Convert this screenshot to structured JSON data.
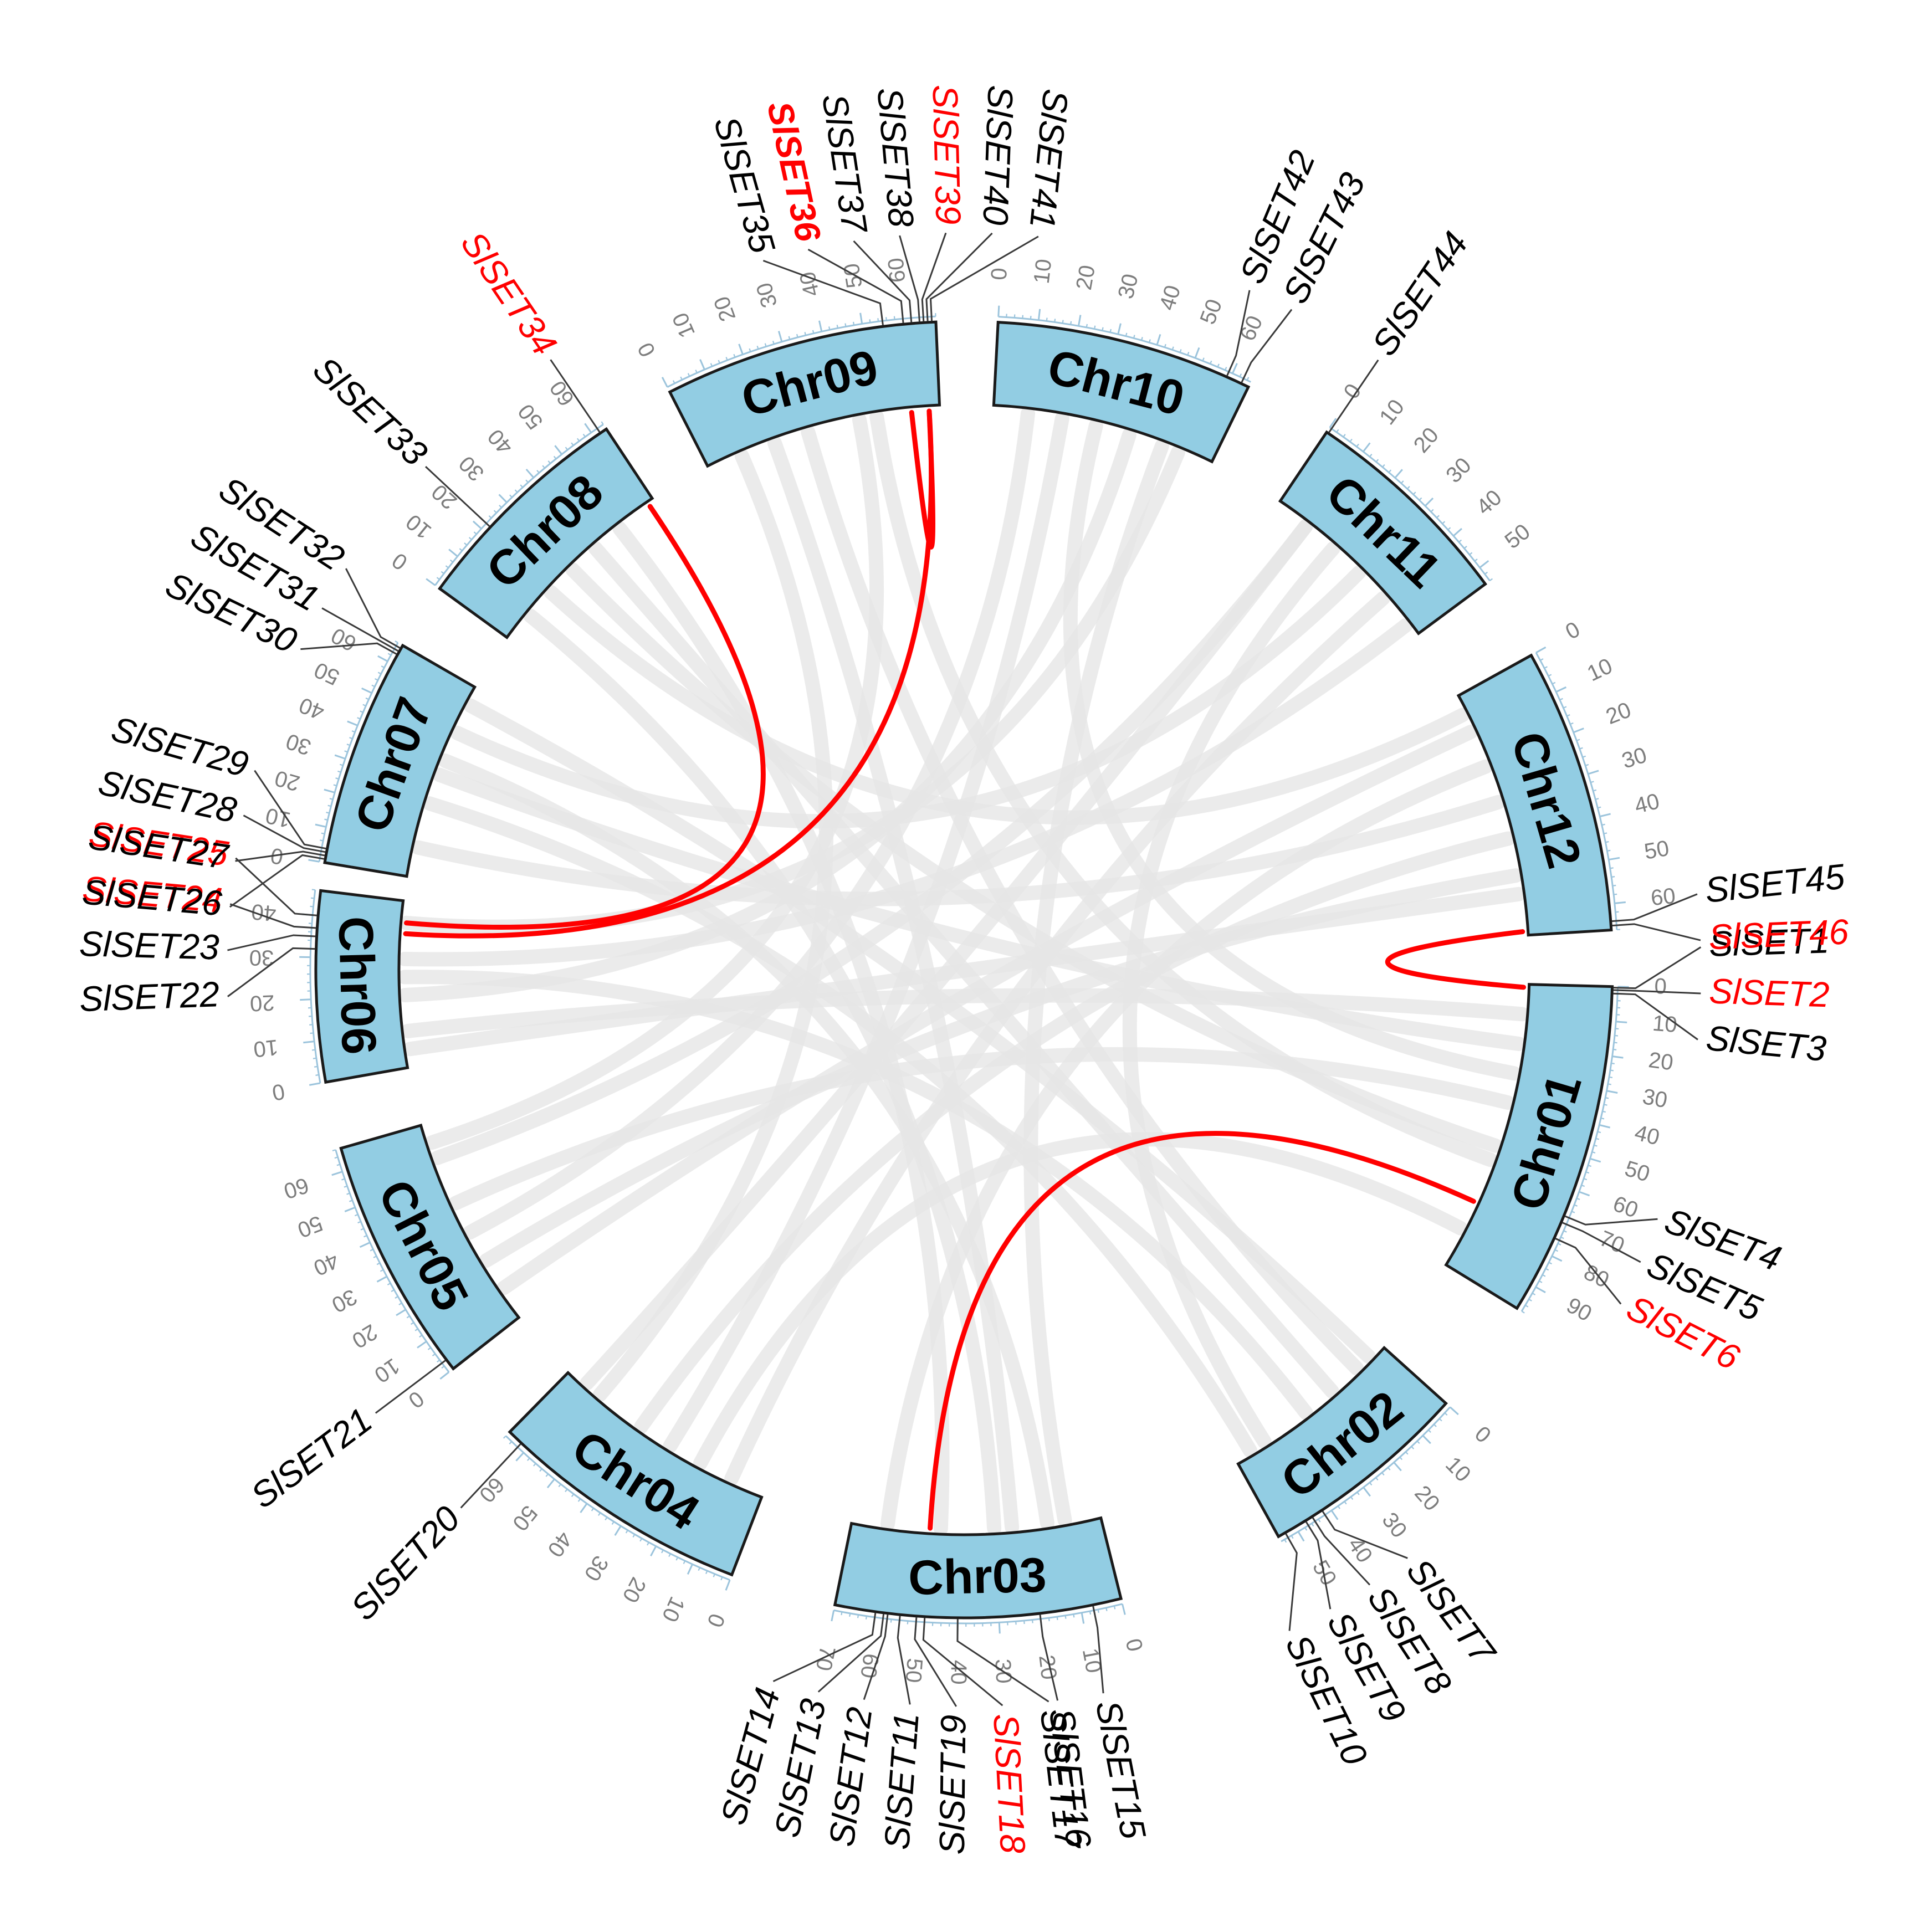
{
  "figure": {
    "type": "circos",
    "description_units": "Mb",
    "colors": {
      "chromosome_fill": "#92cde3",
      "tick": "#9cc4dc",
      "tick_label": "#7d7d7d",
      "background_link": "#e6e6e6",
      "highlight_link": "#ff0000",
      "gene_label_default": "#000000",
      "gene_label_highlight": "#ff0000"
    }
  },
  "chromosomes": [
    {
      "name": "Chr01",
      "length": 98,
      "tick_step": 10
    },
    {
      "name": "Chr02",
      "length": 55,
      "tick_step": 10
    },
    {
      "name": "Chr03",
      "length": 70,
      "tick_step": 10
    },
    {
      "name": "Chr04",
      "length": 66,
      "tick_step": 10
    },
    {
      "name": "Chr05",
      "length": 66,
      "tick_step": 10
    },
    {
      "name": "Chr06",
      "length": 46,
      "tick_step": 10
    },
    {
      "name": "Chr07",
      "length": 66,
      "tick_step": 10
    },
    {
      "name": "Chr08",
      "length": 64,
      "tick_step": 10
    },
    {
      "name": "Chr09",
      "length": 68,
      "tick_step": 10
    },
    {
      "name": "Chr10",
      "length": 65,
      "tick_step": 10
    },
    {
      "name": "Chr11",
      "length": 54,
      "tick_step": 10
    },
    {
      "name": "Chr12",
      "length": 66,
      "tick_step": 10
    }
  ],
  "genes": [
    {
      "label": "SlSET1",
      "chr": "Chr01",
      "pos": 0.3,
      "highlight": false,
      "bold": false
    },
    {
      "label": "SlSET2",
      "chr": "Chr01",
      "pos": 1.0,
      "highlight": true,
      "bold": false
    },
    {
      "label": "SlSET3",
      "chr": "Chr01",
      "pos": 2.0,
      "highlight": false,
      "bold": false
    },
    {
      "label": "SlSET4",
      "chr": "Chr01",
      "pos": 68,
      "highlight": false,
      "bold": false
    },
    {
      "label": "SlSET5",
      "chr": "Chr01",
      "pos": 70,
      "highlight": false,
      "bold": false
    },
    {
      "label": "SlSET6",
      "chr": "Chr01",
      "pos": 75,
      "highlight": true,
      "bold": false
    },
    {
      "label": "SlSET7",
      "chr": "Chr02",
      "pos": 42,
      "highlight": false,
      "bold": false
    },
    {
      "label": "SlSET8",
      "chr": "Chr02",
      "pos": 45,
      "highlight": false,
      "bold": false
    },
    {
      "label": "SlSET9",
      "chr": "Chr02",
      "pos": 47,
      "highlight": false,
      "bold": false
    },
    {
      "label": "SlSET10",
      "chr": "Chr02",
      "pos": 53,
      "highlight": false,
      "bold": false
    },
    {
      "label": "SlSET11",
      "chr": "Chr03",
      "pos": 54,
      "highlight": false,
      "bold": false
    },
    {
      "label": "SlSET12",
      "chr": "Chr03",
      "pos": 57,
      "highlight": false,
      "bold": false
    },
    {
      "label": "SlSET13",
      "chr": "Chr03",
      "pos": 58,
      "highlight": false,
      "bold": false
    },
    {
      "label": "SlSET14",
      "chr": "Chr03",
      "pos": 60,
      "highlight": false,
      "bold": false
    },
    {
      "label": "SlSET15",
      "chr": "Chr03",
      "pos": 7,
      "highlight": false,
      "bold": false
    },
    {
      "label": "SlSET16",
      "chr": "Chr03",
      "pos": 20,
      "highlight": false,
      "bold": false
    },
    {
      "label": "SlSET17",
      "chr": "Chr03",
      "pos": 40,
      "highlight": false,
      "bold": false
    },
    {
      "label": "SlSET18",
      "chr": "Chr03",
      "pos": 48,
      "highlight": true,
      "bold": false
    },
    {
      "label": "SlSET19",
      "chr": "Chr03",
      "pos": 50,
      "highlight": false,
      "bold": false
    },
    {
      "label": "SlSET20",
      "chr": "Chr04",
      "pos": 62,
      "highlight": false,
      "bold": false
    },
    {
      "label": "SlSET21",
      "chr": "Chr05",
      "pos": 3,
      "highlight": false,
      "bold": false
    },
    {
      "label": "SlSET22",
      "chr": "Chr06",
      "pos": 32,
      "highlight": false,
      "bold": false
    },
    {
      "label": "SlSET23",
      "chr": "Chr06",
      "pos": 35,
      "highlight": false,
      "bold": false
    },
    {
      "label": "SlSET24",
      "chr": "Chr06",
      "pos": 37,
      "highlight": true,
      "bold": false
    },
    {
      "label": "SlSET25",
      "chr": "Chr06",
      "pos": 40,
      "highlight": true,
      "bold": false
    },
    {
      "label": "SlSET26",
      "chr": "Chr07",
      "pos": 1,
      "highlight": false,
      "bold": false
    },
    {
      "label": "SlSET27",
      "chr": "Chr07",
      "pos": 2,
      "highlight": false,
      "bold": false
    },
    {
      "label": "SlSET28",
      "chr": "Chr07",
      "pos": 3,
      "highlight": false,
      "bold": false
    },
    {
      "label": "SlSET29",
      "chr": "Chr07",
      "pos": 4,
      "highlight": false,
      "bold": false
    },
    {
      "label": "SlSET30",
      "chr": "Chr07",
      "pos": 63,
      "highlight": false,
      "bold": false
    },
    {
      "label": "SlSET31",
      "chr": "Chr07",
      "pos": 64,
      "highlight": false,
      "bold": false
    },
    {
      "label": "SlSET32",
      "chr": "Chr07",
      "pos": 65,
      "highlight": false,
      "bold": false
    },
    {
      "label": "SlSET33",
      "chr": "Chr08",
      "pos": 22,
      "highlight": false,
      "bold": false
    },
    {
      "label": "SlSET34",
      "chr": "Chr08",
      "pos": 62,
      "highlight": true,
      "bold": false
    },
    {
      "label": "SlSET35",
      "chr": "Chr09",
      "pos": 55,
      "highlight": false,
      "bold": false
    },
    {
      "label": "SlSET36",
      "chr": "Chr09",
      "pos": 60,
      "highlight": true,
      "bold": true
    },
    {
      "label": "SlSET37",
      "chr": "Chr09",
      "pos": 62,
      "highlight": false,
      "bold": false
    },
    {
      "label": "SlSET38",
      "chr": "Chr09",
      "pos": 64,
      "highlight": false,
      "bold": false
    },
    {
      "label": "SlSET39",
      "chr": "Chr09",
      "pos": 65,
      "highlight": true,
      "bold": false
    },
    {
      "label": "SlSET40",
      "chr": "Chr09",
      "pos": 66,
      "highlight": false,
      "bold": false
    },
    {
      "label": "SlSET41",
      "chr": "Chr09",
      "pos": 67,
      "highlight": false,
      "bold": false
    },
    {
      "label": "SlSET42",
      "chr": "Chr10",
      "pos": 59,
      "highlight": false,
      "bold": false
    },
    {
      "label": "SlSET43",
      "chr": "Chr10",
      "pos": 63,
      "highlight": false,
      "bold": false
    },
    {
      "label": "SlSET44",
      "chr": "Chr11",
      "pos": 0.5,
      "highlight": false,
      "bold": false
    },
    {
      "label": "SlSET45",
      "chr": "Chr12",
      "pos": 64,
      "highlight": false,
      "bold": false
    },
    {
      "label": "SlSET46",
      "chr": "Chr12",
      "pos": 65,
      "highlight": true,
      "bold": false
    }
  ],
  "highlight_links": [
    {
      "from": "SlSET6",
      "to": "SlSET18"
    },
    {
      "from": "SlSET2",
      "to": "SlSET46"
    },
    {
      "from": "SlSET25",
      "to": "SlSET34"
    },
    {
      "from": "SlSET24",
      "to": "SlSET39"
    },
    {
      "from": "SlSET36",
      "to": "SlSET39"
    }
  ],
  "background_links": [
    [
      "Chr01",
      20,
      "Chr07",
      35
    ],
    [
      "Chr01",
      40,
      "Chr05",
      40
    ],
    [
      "Chr01",
      55,
      "Chr08",
      30
    ],
    [
      "Chr01",
      30,
      "Chr10",
      30
    ],
    [
      "Chr01",
      85,
      "Chr04",
      20
    ],
    [
      "Chr01",
      10,
      "Chr06",
      10
    ],
    [
      "Chr02",
      10,
      "Chr09",
      30
    ],
    [
      "Chr02",
      30,
      "Chr06",
      25
    ],
    [
      "Chr02",
      45,
      "Chr11",
      20
    ],
    [
      "Chr03",
      10,
      "Chr10",
      50
    ],
    [
      "Chr03",
      30,
      "Chr08",
      10
    ],
    [
      "Chr03",
      60,
      "Chr12",
      20
    ],
    [
      "Chr04",
      10,
      "Chr11",
      40
    ],
    [
      "Chr04",
      40,
      "Chr12",
      40
    ],
    [
      "Chr04",
      55,
      "Chr09",
      10
    ],
    [
      "Chr05",
      10,
      "Chr12",
      10
    ],
    [
      "Chr05",
      30,
      "Chr10",
      10
    ],
    [
      "Chr05",
      55,
      "Chr11",
      10
    ],
    [
      "Chr06",
      5,
      "Chr12",
      55
    ],
    [
      "Chr06",
      20,
      "Chr10",
      40
    ],
    [
      "Chr07",
      10,
      "Chr12",
      30
    ],
    [
      "Chr07",
      50,
      "Chr11",
      30
    ],
    [
      "Chr07",
      25,
      "Chr02",
      50
    ],
    [
      "Chr08",
      40,
      "Chr02",
      20
    ],
    [
      "Chr08",
      50,
      "Chr03",
      45
    ],
    [
      "Chr09",
      20,
      "Chr03",
      25
    ],
    [
      "Chr09",
      45,
      "Chr05",
      60
    ],
    [
      "Chr10",
      20,
      "Chr04",
      30
    ],
    [
      "Chr11",
      50,
      "Chr06",
      30
    ],
    [
      "Chr12",
      50,
      "Chr05",
      20
    ],
    [
      "Chr01",
      60,
      "Chr09",
      50
    ],
    [
      "Chr07",
      40,
      "Chr03",
      15
    ],
    [
      "Chr08",
      20,
      "Chr12",
      5
    ],
    [
      "Chr10",
      55,
      "Chr06",
      40
    ],
    [
      "Chr11",
      10,
      "Chr04",
      60
    ],
    [
      "Chr02",
      5,
      "Chr07",
      60
    ]
  ]
}
